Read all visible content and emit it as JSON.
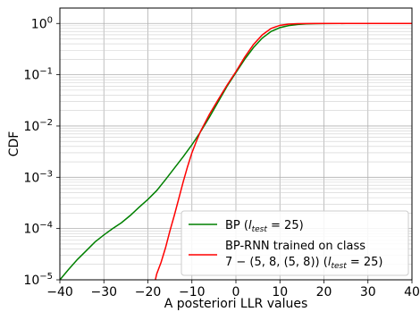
{
  "chart_data": {
    "type": "line",
    "xlabel": "A posteriori LLR values",
    "ylabel": "CDF",
    "xlim": [
      -40,
      40
    ],
    "ylim": [
      1e-05,
      2
    ],
    "yscale": "log",
    "grid": true,
    "legend_position": "lower-right",
    "x_ticks": [
      -40,
      -30,
      -20,
      -10,
      0,
      10,
      20,
      30,
      40
    ],
    "x_tick_labels": [
      "−40",
      "−30",
      "−20",
      "−10",
      "0",
      "10",
      "20",
      "30",
      "40"
    ],
    "y_ticks": [
      {
        "value": 1.0,
        "label": "10",
        "exp": "0"
      },
      {
        "value": 0.1,
        "label": "10",
        "exp": "−1"
      },
      {
        "value": 0.01,
        "label": "10",
        "exp": "−2"
      },
      {
        "value": 0.001,
        "label": "10",
        "exp": "−3"
      },
      {
        "value": 0.0001,
        "label": "10",
        "exp": "−4"
      },
      {
        "value": 1e-05,
        "label": "10",
        "exp": "−5"
      }
    ],
    "series": [
      {
        "name": "BP (I_test = 25)",
        "legend_label": "BP (",
        "legend_var": "l",
        "legend_sub": "test",
        "legend_tail": " = 25)",
        "color": "#008000",
        "x": [
          -40.0,
          -38.0,
          -36.0,
          -34.0,
          -32.0,
          -30.0,
          -28.0,
          -26.0,
          -24.0,
          -22.0,
          -20.0,
          -18.0,
          -16.0,
          -14.0,
          -12.0,
          -10.0,
          -8.0,
          -6.0,
          -4.0,
          -2.0,
          0.0,
          2.0,
          4.0,
          6.0,
          8.0,
          10.0,
          12.0,
          14.0,
          16.0,
          18.0,
          20.0,
          25.0,
          30.0,
          35.0,
          40.0
        ],
        "y": [
          1e-05,
          1.6e-05,
          2.5e-05,
          3.7e-05,
          5.5e-05,
          7.5e-05,
          0.0001,
          0.00013,
          0.00018,
          0.00026,
          0.00037,
          0.00055,
          0.0009,
          0.0015,
          0.0025,
          0.0043,
          0.0078,
          0.015,
          0.03,
          0.06,
          0.11,
          0.2,
          0.34,
          0.52,
          0.7,
          0.83,
          0.91,
          0.955,
          0.98,
          0.99,
          0.995,
          0.999,
          1.0,
          1.0,
          1.0
        ]
      },
      {
        "name": "BP-RNN trained on class 7−(5, 8, (5, 8)) (I_test = 25)",
        "legend_line1": "BP-RNN trained on class",
        "legend_line2_pre": "7 − (5, 8, (5, 8)) (",
        "legend_var": "l",
        "legend_sub": "test",
        "legend_tail": " = 25)",
        "color": "#ff0000",
        "x": [
          -18.3,
          -18.0,
          -17.0,
          -16.0,
          -15.0,
          -14.0,
          -13.0,
          -12.0,
          -11.0,
          -10.0,
          -9.0,
          -8.0,
          -6.0,
          -4.0,
          -2.0,
          0.0,
          2.0,
          4.0,
          6.0,
          8.0,
          10.0,
          12.0,
          14.0,
          16.0,
          20.0,
          25.0,
          30.0,
          40.0
        ],
        "y": [
          1e-05,
          1.3e-05,
          2.2e-05,
          4.2e-05,
          9e-05,
          0.00018,
          0.00038,
          0.0008,
          0.0016,
          0.003,
          0.005,
          0.008,
          0.017,
          0.033,
          0.063,
          0.115,
          0.22,
          0.39,
          0.6,
          0.8,
          0.92,
          0.97,
          0.99,
          0.997,
          0.999,
          1.0,
          1.0,
          1.0
        ]
      }
    ]
  }
}
